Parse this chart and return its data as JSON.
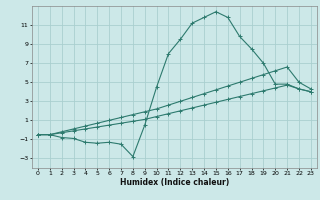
{
  "xlabel": "Humidex (Indice chaleur)",
  "bg_color": "#cce8e8",
  "line_color": "#2d7a6e",
  "grid_color": "#aacfcf",
  "xlim": [
    -0.5,
    23.5
  ],
  "ylim": [
    -4,
    13
  ],
  "yticks": [
    -3,
    -1,
    1,
    3,
    5,
    7,
    9,
    11
  ],
  "xticks": [
    0,
    1,
    2,
    3,
    4,
    5,
    6,
    7,
    8,
    9,
    10,
    11,
    12,
    13,
    14,
    15,
    16,
    17,
    18,
    19,
    20,
    21,
    22,
    23
  ],
  "series1_x": [
    0,
    1,
    2,
    3,
    4,
    5,
    6,
    7,
    8,
    9,
    10,
    11,
    12,
    13,
    14,
    15,
    16,
    17,
    18,
    19,
    20,
    21,
    22,
    23
  ],
  "series1_y": [
    -0.5,
    -0.5,
    -0.8,
    -0.9,
    -1.3,
    -1.4,
    -1.3,
    -1.5,
    -2.8,
    0.5,
    4.5,
    8.0,
    9.5,
    11.2,
    11.8,
    12.4,
    11.8,
    9.8,
    8.5,
    7.0,
    4.8,
    4.8,
    4.3,
    4.0
  ],
  "series2_x": [
    0,
    1,
    2,
    3,
    4,
    5,
    6,
    7,
    8,
    9,
    10,
    11,
    12,
    13,
    14,
    15,
    16,
    17,
    18,
    19,
    20,
    21,
    22,
    23
  ],
  "series2_y": [
    -0.5,
    -0.5,
    -0.2,
    0.1,
    0.4,
    0.7,
    1.0,
    1.3,
    1.6,
    1.9,
    2.2,
    2.6,
    3.0,
    3.4,
    3.8,
    4.2,
    4.6,
    5.0,
    5.4,
    5.8,
    6.2,
    6.6,
    5.0,
    4.3
  ],
  "series3_x": [
    0,
    1,
    2,
    3,
    4,
    5,
    6,
    7,
    8,
    9,
    10,
    11,
    12,
    13,
    14,
    15,
    16,
    17,
    18,
    19,
    20,
    21,
    22,
    23
  ],
  "series3_y": [
    -0.5,
    -0.5,
    -0.3,
    -0.1,
    0.1,
    0.3,
    0.5,
    0.7,
    0.9,
    1.1,
    1.4,
    1.7,
    2.0,
    2.3,
    2.6,
    2.9,
    3.2,
    3.5,
    3.8,
    4.1,
    4.4,
    4.7,
    4.3,
    4.0
  ],
  "figsize": [
    3.2,
    2.0
  ],
  "dpi": 100
}
